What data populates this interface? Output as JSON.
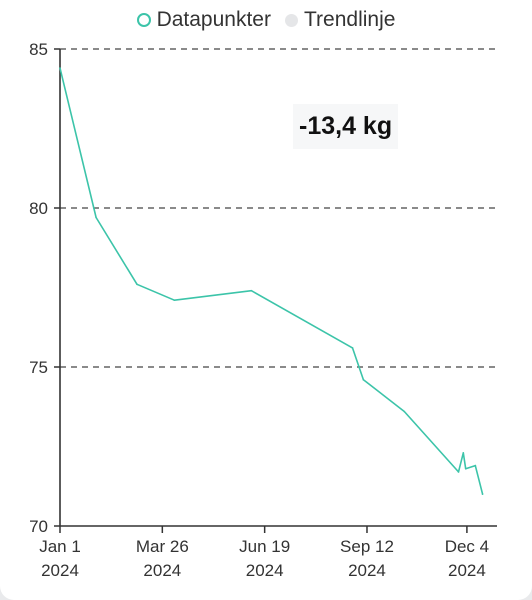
{
  "legend": {
    "items": [
      {
        "label": "Datapunkter",
        "marker": "ring",
        "color": "#3cc4a9"
      },
      {
        "label": "Trendlinje",
        "marker": "dot",
        "color": "#e5e6e8"
      }
    ]
  },
  "summary": {
    "text": "-13,4 kg"
  },
  "colors": {
    "line": "#3cc4a9",
    "grid": "#444444",
    "axis": "#333333"
  },
  "chart_data": {
    "type": "line",
    "title": "",
    "xlabel": "",
    "ylabel": "",
    "ylim": [
      70,
      85
    ],
    "xlim": [
      "2024-01-01",
      "2024-12-29"
    ],
    "grid": {
      "horizontal": true,
      "style": "dashed"
    },
    "legend_position": "top",
    "y_ticks": [
      {
        "value": 70,
        "label": "70"
      },
      {
        "value": 75,
        "label": "75"
      },
      {
        "value": 80,
        "label": "80"
      },
      {
        "value": 85,
        "label": "85"
      }
    ],
    "x_ticks": [
      {
        "date": "2024-01-01",
        "label": "Jan 1",
        "year": "2024"
      },
      {
        "date": "2024-03-26",
        "label": "Mar 26",
        "year": "2024"
      },
      {
        "date": "2024-06-19",
        "label": "Jun 19",
        "year": "2024"
      },
      {
        "date": "2024-09-12",
        "label": "Sep 12",
        "year": "2024"
      },
      {
        "date": "2024-12-04",
        "label": "Dec 4",
        "year": "2024"
      }
    ],
    "series": [
      {
        "name": "Datapunkter",
        "points": [
          {
            "x": "2024-01-01",
            "y": 84.4
          },
          {
            "x": "2024-01-31",
            "y": 79.7
          },
          {
            "x": "2024-03-05",
            "y": 77.6
          },
          {
            "x": "2024-04-05",
            "y": 77.1
          },
          {
            "x": "2024-06-08",
            "y": 77.4
          },
          {
            "x": "2024-08-31",
            "y": 75.6
          },
          {
            "x": "2024-09-09",
            "y": 74.6
          },
          {
            "x": "2024-10-13",
            "y": 73.6
          },
          {
            "x": "2024-11-27",
            "y": 71.7
          },
          {
            "x": "2024-12-01",
            "y": 72.3
          },
          {
            "x": "2024-12-03",
            "y": 71.8
          },
          {
            "x": "2024-12-11",
            "y": 71.9
          },
          {
            "x": "2024-12-17",
            "y": 71.0
          }
        ]
      }
    ]
  }
}
